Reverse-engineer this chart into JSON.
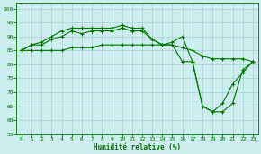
{
  "x": [
    0,
    1,
    2,
    3,
    4,
    5,
    6,
    7,
    8,
    9,
    10,
    11,
    12,
    13,
    14,
    15,
    16,
    17,
    18,
    19,
    20,
    21,
    22,
    23
  ],
  "line1": [
    85,
    87,
    88,
    90,
    92,
    93,
    93,
    93,
    93,
    93,
    94,
    93,
    93,
    89,
    87,
    88,
    90,
    81,
    65,
    63,
    63,
    66,
    78,
    81
  ],
  "line2": [
    85,
    87,
    87,
    89,
    90,
    92,
    91,
    92,
    92,
    92,
    93,
    92,
    92,
    89,
    87,
    87,
    81,
    81,
    65,
    63,
    66,
    73,
    77,
    81
  ],
  "line3": [
    85,
    85,
    85,
    85,
    85,
    86,
    86,
    86,
    87,
    87,
    87,
    87,
    87,
    87,
    87,
    87,
    86,
    85,
    83,
    82,
    82,
    82,
    82,
    81
  ],
  "xlabel": "Humidité relative (%)",
  "ylim": [
    55,
    102
  ],
  "xlim": [
    -0.5,
    23.5
  ],
  "yticks": [
    55,
    60,
    65,
    70,
    75,
    80,
    85,
    90,
    95,
    100
  ],
  "xticks": [
    0,
    1,
    2,
    3,
    4,
    5,
    6,
    7,
    8,
    9,
    10,
    11,
    12,
    13,
    14,
    15,
    16,
    17,
    18,
    19,
    20,
    21,
    22,
    23
  ],
  "line_color": "#007700",
  "bg_color": "#cceeee",
  "grid_color": "#99cccc",
  "marker": "+",
  "marker_size": 3.5,
  "line_width": 0.8
}
